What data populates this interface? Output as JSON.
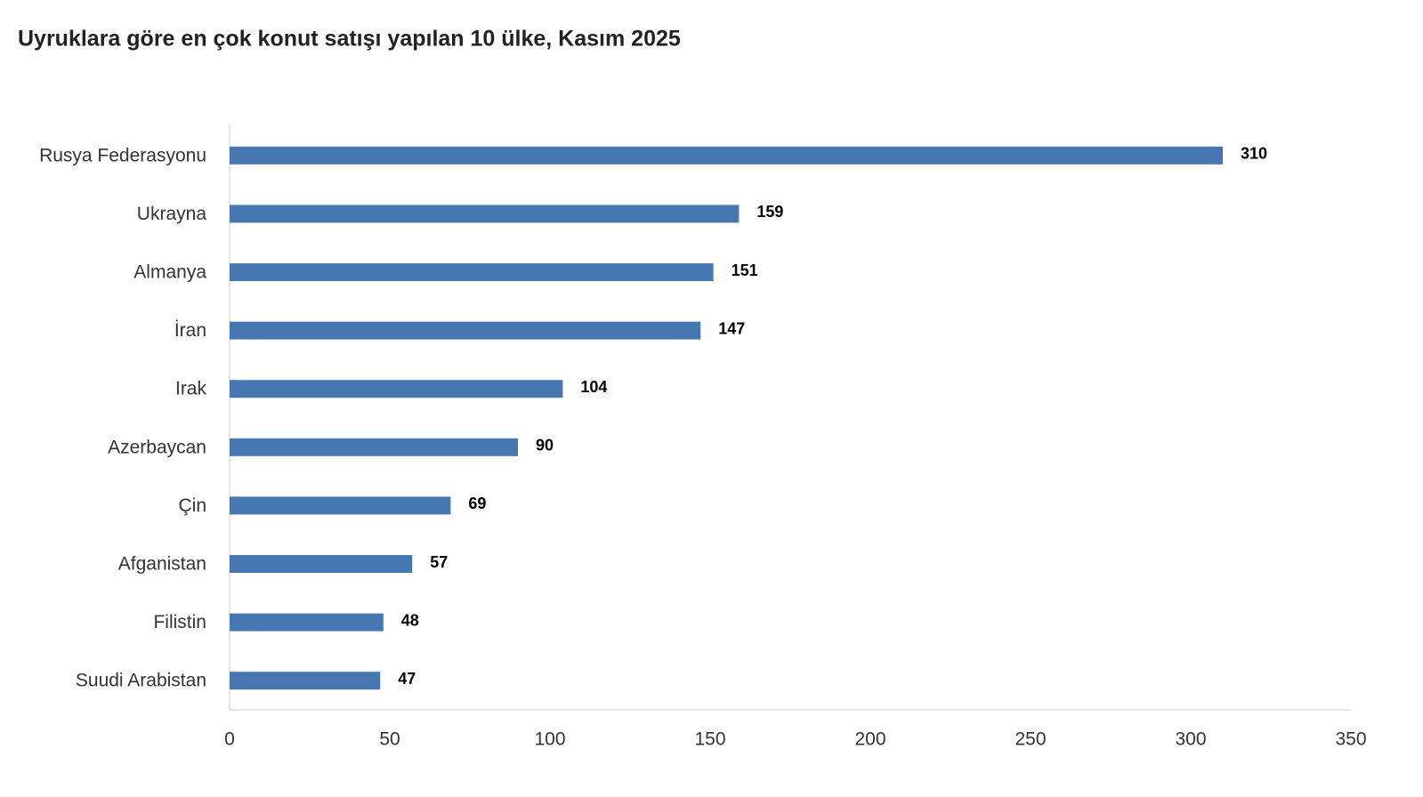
{
  "chart_data": {
    "type": "bar",
    "orientation": "horizontal",
    "title": "Uyruklara göre en çok konut satışı yapılan 10 ülke, Kasım 2025",
    "categories": [
      "Rusya Federasyonu",
      "Ukrayna",
      "Almanya",
      "İran",
      "Irak",
      "Azerbaycan",
      "Çin",
      "Afganistan",
      "Filistin",
      "Suudi Arabistan"
    ],
    "values": [
      310,
      159,
      151,
      147,
      104,
      90,
      69,
      57,
      48,
      47
    ],
    "color": "#4677b0",
    "xlim": [
      0,
      350
    ],
    "xticks": [
      0,
      50,
      100,
      150,
      200,
      250,
      300,
      350
    ],
    "grid": false
  }
}
